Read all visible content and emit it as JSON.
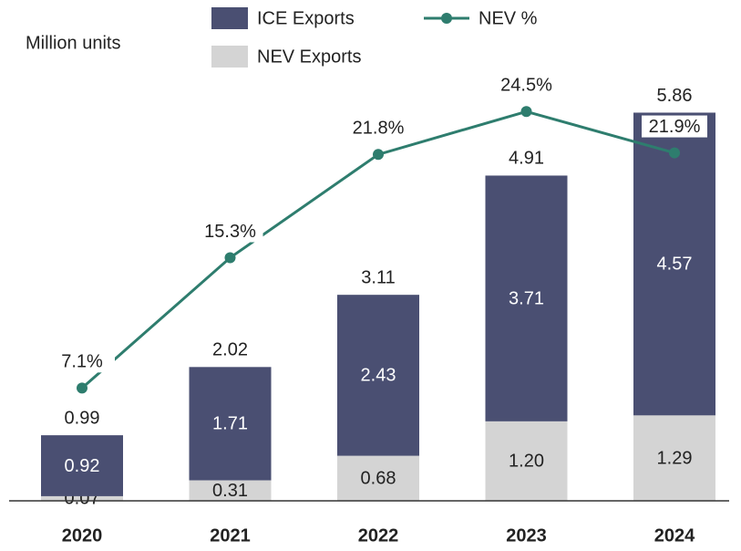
{
  "chart_data": {
    "type": "stacked-bar-line",
    "y_label": "Million units",
    "categories": [
      "2020",
      "2021",
      "2022",
      "2023",
      "2024"
    ],
    "ylim": [
      0,
      6.5
    ],
    "y2lim": [
      0,
      27.1
    ],
    "series": [
      {
        "name": "NEV Exports",
        "color": "#d4d4d4",
        "kind": "bar",
        "values": [
          0.07,
          0.31,
          0.68,
          1.2,
          1.29
        ],
        "value_labels": [
          "0.07",
          "0.31",
          "0.68",
          "1.20",
          "1.29"
        ]
      },
      {
        "name": "ICE Exports",
        "color": "#4a4f72",
        "kind": "bar",
        "values": [
          0.92,
          1.71,
          2.43,
          3.71,
          4.57
        ]
      },
      {
        "name": "NEV %",
        "color": "#2e7d6e",
        "kind": "line",
        "axis": "y2",
        "values": [
          7.1,
          15.3,
          21.8,
          24.5,
          21.9
        ],
        "value_labels": [
          "7.1%",
          "15.3%",
          "21.8%",
          "24.5%",
          "21.9%"
        ]
      }
    ],
    "totals": [
      0.99,
      2.02,
      3.11,
      4.91,
      5.86
    ]
  }
}
